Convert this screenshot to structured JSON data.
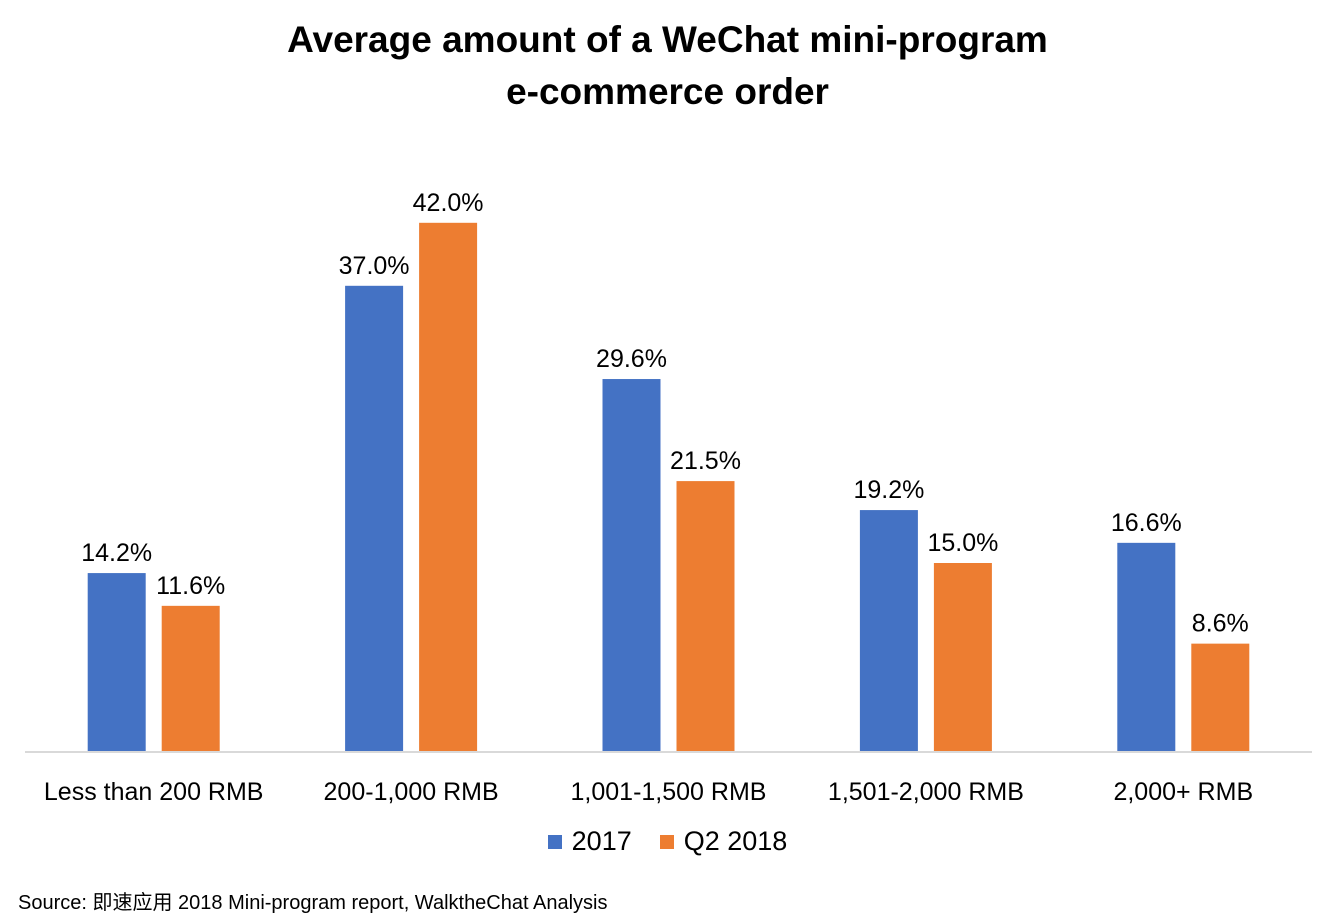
{
  "source": "Source: 即速应用 2018 Mini-program report, WalktheChat Analysis",
  "chart_data": {
    "type": "bar",
    "title": [
      "Average amount of a WeChat mini-program",
      "e-commerce order"
    ],
    "categories": [
      "Less than 200 RMB",
      "200-1,000 RMB",
      "1,001-1,500 RMB",
      "1,501-2,000 RMB",
      "2,000+ RMB"
    ],
    "series": [
      {
        "name": "2017",
        "color": "#4472C4",
        "values": [
          14.2,
          37.0,
          29.6,
          19.2,
          16.6
        ],
        "labels": [
          "14.2%",
          "37.0%",
          "29.6%",
          "19.2%",
          "16.6%"
        ]
      },
      {
        "name": "Q2 2018",
        "color": "#ED7D31",
        "values": [
          11.6,
          42.0,
          21.5,
          15.0,
          8.6
        ],
        "labels": [
          "11.6%",
          "42.0%",
          "21.5%",
          "15.0%",
          "8.6%"
        ]
      }
    ],
    "value_unit": "%",
    "ylim": [
      0,
      45
    ],
    "grid": false,
    "legend_position": "bottom"
  }
}
